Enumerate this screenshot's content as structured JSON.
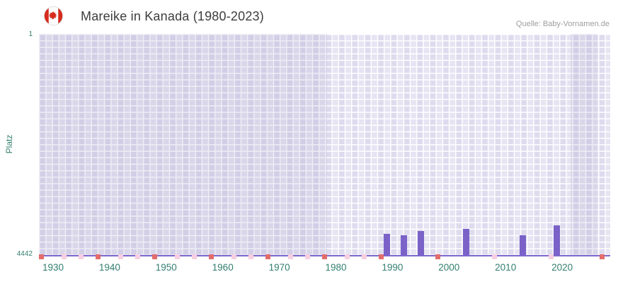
{
  "header": {
    "title": "Mareike in Kanada (1980-2023)",
    "source": "Quelle: Baby-Vornamen.de",
    "flag": "canada-flag-icon",
    "flag_colors": {
      "red": "#d52b1e",
      "white": "#ffffff"
    }
  },
  "chart_data": {
    "type": "bar",
    "title": "Mareike in Kanada (1980-2023)",
    "xlabel": "",
    "ylabel": "Platz",
    "y_axis": {
      "top_tick": "1",
      "bottom_tick": "4442",
      "min": 1,
      "max": 4442,
      "inverted": true
    },
    "x_ticks": [
      "1930",
      "1940",
      "1950",
      "1960",
      "1970",
      "1980",
      "1990",
      "2000",
      "2010",
      "2020"
    ],
    "x_range": [
      1927.5,
      2028.5
    ],
    "grid": true,
    "legend": false,
    "bars": [
      {
        "year": 1989,
        "rank": 4015
      },
      {
        "year": 1992,
        "rank": 4045
      },
      {
        "year": 1995,
        "rank": 3960
      },
      {
        "year": 2003,
        "rank": 3915
      },
      {
        "year": 2013,
        "rank": 4045
      },
      {
        "year": 2019,
        "rank": 3845
      }
    ],
    "baseline_marks": {
      "strong": [
        1928,
        1938,
        1948,
        1958,
        1968,
        1978,
        1988,
        1998,
        2027
      ],
      "light": [
        1932,
        1935,
        1942,
        1945,
        1952,
        1955,
        1962,
        1965,
        1972,
        1975,
        1982,
        1985,
        2008,
        2018
      ]
    },
    "shaded_regions": [
      {
        "from": 1927.5,
        "to": 1978.5
      },
      {
        "from": 2021.5,
        "to": 2026.3
      }
    ],
    "colors": {
      "bar": "#7a62c8",
      "axis_line": "#7b68cf",
      "tick_label": "#337f6d",
      "strong_mark": "#e36c6c",
      "light_mark": "#f7cfe1",
      "plot_bg": "#eceaf6",
      "grid_line": "#ffffff"
    }
  }
}
